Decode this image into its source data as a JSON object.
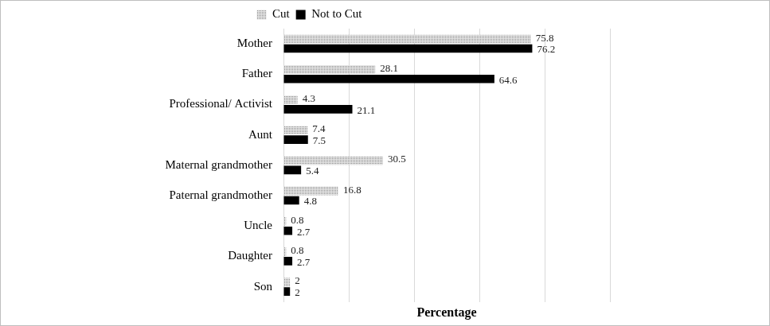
{
  "chart_data": {
    "type": "bar",
    "orientation": "horizontal",
    "x_label": "Percentage",
    "categories": [
      "Mother",
      "Father",
      "Professional/ Activist",
      "Aunt",
      "Maternal grandmother",
      "Paternal grandmother",
      "Uncle",
      "Daughter",
      "Son"
    ],
    "series": [
      {
        "name": "Cut",
        "color": "#8c8c8c",
        "values": [
          75.8,
          28.1,
          4.3,
          7.4,
          30.5,
          16.8,
          0.8,
          0.8,
          2
        ]
      },
      {
        "name": "Not to Cut",
        "color": "#000000",
        "values": [
          76.2,
          64.6,
          21.1,
          7.5,
          5.4,
          4.8,
          2.7,
          2.7,
          2
        ]
      }
    ],
    "xlim": [
      0,
      100
    ],
    "xticks": [
      0,
      20,
      40,
      60,
      80,
      100
    ],
    "grid": true,
    "legend": "top",
    "data_labels": true,
    "tick_labels": "y"
  }
}
